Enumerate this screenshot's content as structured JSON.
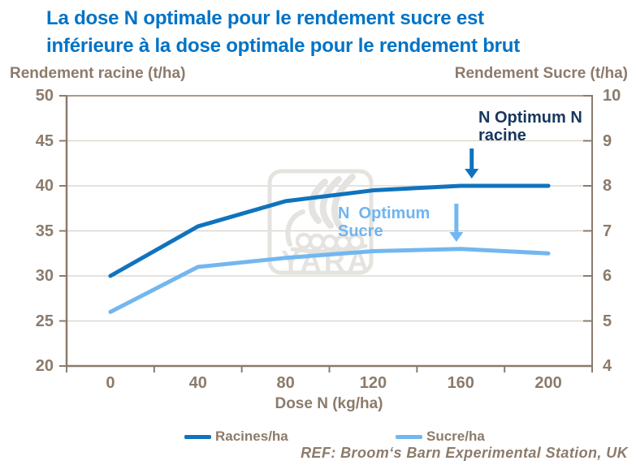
{
  "title": {
    "line1": "La dose N optimale pour le rendement sucre est",
    "line2": "inférieure à la dose optimale pour le rendement brut"
  },
  "axes": {
    "left_title": "Rendement racine (t/ha)",
    "right_title": "Rendement Sucre (t/ha)",
    "x_title": "Dose N (kg/ha)",
    "left_ticks": [
      50,
      45,
      40,
      35,
      30,
      25,
      20
    ],
    "right_ticks": [
      10,
      9,
      8,
      7,
      6,
      5,
      4
    ],
    "x_ticks": [
      0,
      40,
      80,
      120,
      160,
      200
    ]
  },
  "chart_data": {
    "type": "line",
    "x": [
      0,
      40,
      80,
      120,
      160,
      200
    ],
    "xlabel": "Dose N (kg/ha)",
    "left_axis": {
      "label": "Rendement racine (t/ha)",
      "range": [
        20,
        50
      ]
    },
    "right_axis": {
      "label": "Rendement Sucre (t/ha)",
      "range": [
        4,
        10
      ]
    },
    "grid": true,
    "legend_position": "bottom",
    "series": [
      {
        "name": "Racines/ha",
        "axis": "left",
        "color": "#1073BD",
        "values": [
          30,
          35.5,
          38.3,
          39.5,
          40,
          40
        ]
      },
      {
        "name": "Sucre/ha",
        "axis": "right",
        "color": "#72B7F0",
        "values": [
          5.2,
          6.2,
          6.4,
          6.55,
          6.6,
          6.5
        ]
      }
    ],
    "annotations": [
      {
        "text": "N Optimum N\nracine",
        "color": "#17375E",
        "arrow_color": "#1073BD",
        "arrow_x": 165
      },
      {
        "text": "N  Optimum\nSucre",
        "color": "#6FB5EF",
        "arrow_color": "#72B7F0",
        "arrow_x": 158
      }
    ]
  },
  "legend": [
    {
      "label": "Racines/ha",
      "color": "#1073BD"
    },
    {
      "label": "Sucre/ha",
      "color": "#72B7F0"
    }
  ],
  "footer": {
    "ref": "REF: Broom‘s Barn Experimental Station, UK"
  },
  "watermark": {
    "text": "YARA"
  },
  "colors": {
    "title_blue": "#0073C6",
    "axis_brown": "#8C7B6B",
    "gridline": "#D7D2CA",
    "plot_top_border": "#A89A88",
    "watermark_gray": "#E5E3DF"
  }
}
